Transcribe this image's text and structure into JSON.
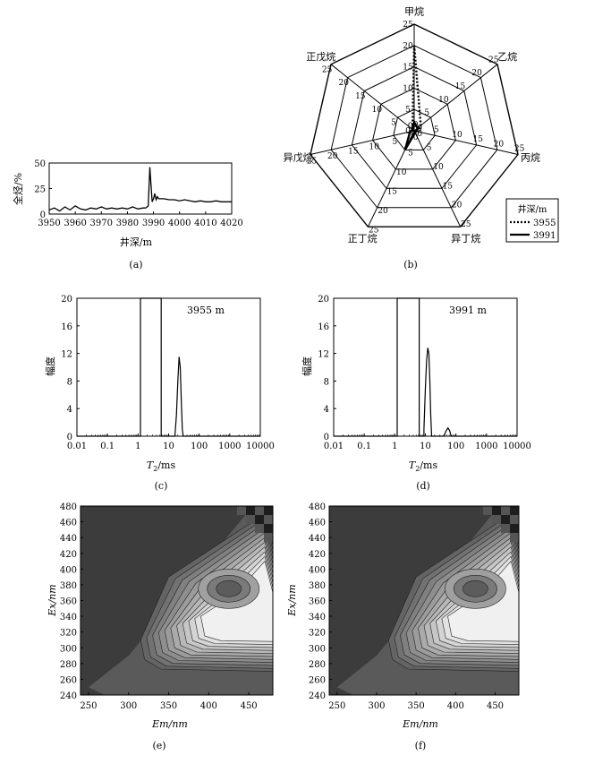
{
  "panels": {
    "a": {
      "caption": "(a)",
      "chart_data": {
        "type": "line",
        "xlabel": "井深/m",
        "ylabel": "全烃/%",
        "xlim": [
          3950,
          4020
        ],
        "ylim": [
          0,
          50
        ],
        "xticks": [
          3950,
          3960,
          3970,
          3980,
          3990,
          4000,
          4010,
          4020
        ],
        "yticks": [
          0,
          25,
          50
        ],
        "series": [
          {
            "x": [
              3950,
              3952,
              3954,
              3956,
              3958,
              3960,
              3962,
              3964,
              3966,
              3968,
              3970,
              3972,
              3974,
              3976,
              3978,
              3980,
              3982,
              3984,
              3986,
              3987,
              3988,
              3988.6,
              3989,
              3989.5,
              3990,
              3990.5,
              3991,
              3991.5,
              3992,
              3993,
              3994,
              3996,
              3998,
              4000,
              4002,
              4004,
              4006,
              4008,
              4010,
              4012,
              4014,
              4016,
              4018,
              4020
            ],
            "y": [
              4,
              6,
              3,
              7,
              4,
              8,
              5,
              4,
              6,
              5,
              7,
              5,
              6,
              5,
              6,
              5,
              7,
              5,
              6,
              6,
              8,
              46,
              30,
              12,
              15,
              20,
              14,
              17,
              15,
              15,
              15,
              14,
              14,
              13,
              14,
              13,
              12,
              13,
              12,
              12,
              13,
              12,
              12,
              12
            ]
          }
        ]
      }
    },
    "b": {
      "caption": "(b)",
      "chart_data": {
        "type": "radar",
        "axes": [
          "甲烷",
          "乙烷",
          "丙烷",
          "异丁烷",
          "正丁烷",
          "异戊烷",
          "正戊烷"
        ],
        "rlim": [
          0,
          25
        ],
        "rings": [
          5,
          10,
          15,
          20,
          25
        ],
        "ring_labels": [
          "0",
          "5",
          "10",
          "15",
          "20",
          "25"
        ],
        "legend_title": "井深/m",
        "series": [
          {
            "name": "3955",
            "style": "dotted",
            "values": [
              20,
              2,
              1,
              0.5,
              0.5,
              0.5,
              0.5
            ]
          },
          {
            "name": "3991",
            "style": "solid",
            "values": [
              2,
              1,
              0.5,
              0.5,
              5,
              1,
              0.5
            ]
          }
        ]
      }
    },
    "c": {
      "caption": "(c)",
      "label": "3955 m",
      "chart_data": {
        "type": "line",
        "xscale": "log",
        "xlabel_main": "T",
        "xlabel_sub": "2",
        "xlabel_unit": "/ms",
        "ylabel": "幅度",
        "xlim": [
          0.01,
          10000
        ],
        "ylim": [
          0,
          20
        ],
        "xticks": [
          "0.01",
          "0.1",
          "1",
          "10",
          "100",
          "1000",
          "10000"
        ],
        "yticks": [
          0,
          4,
          8,
          12,
          16,
          20
        ],
        "series": [
          {
            "x": [
              0.01,
              1.2,
              1.2,
              5.7,
              5.7,
              16,
              18,
              20,
              22,
              24,
              26,
              28,
              30,
              10000
            ],
            "y": [
              0,
              0,
              20,
              20,
              0,
              0,
              3,
              8,
              11.5,
              10,
              5,
              1,
              0,
              0
            ]
          }
        ]
      }
    },
    "d": {
      "caption": "(d)",
      "label": "3991 m",
      "chart_data": {
        "type": "line",
        "xscale": "log",
        "xlabel_main": "T",
        "xlabel_sub": "2",
        "xlabel_unit": "/ms",
        "ylabel": "幅度",
        "xlim": [
          0.01,
          10000
        ],
        "ylim": [
          0,
          20
        ],
        "xticks": [
          "0.01",
          "0.1",
          "1",
          "10",
          "100",
          "1000",
          "10000"
        ],
        "yticks": [
          0,
          4,
          8,
          12,
          16,
          20
        ],
        "series": [
          {
            "x": [
              0.01,
              1.2,
              1.2,
              6.3,
              6.3,
              9,
              9,
              10,
              11,
              12,
              13,
              14,
              15,
              16,
              40,
              48,
              55,
              62,
              70,
              10000
            ],
            "y": [
              0,
              0,
              20,
              20,
              0,
              0,
              1,
              7,
              11,
              12.8,
              12,
              8,
              3,
              0,
              0,
              0.8,
              1.2,
              0.8,
              0,
              0
            ]
          }
        ]
      }
    },
    "e": {
      "caption": "(e)",
      "chart_data": {
        "type": "heatmap",
        "xlabel": "Em/nm",
        "ylabel": "Ex/nm",
        "xlim": [
          240,
          480
        ],
        "ylim": [
          240,
          480
        ],
        "xticks": [
          250,
          300,
          350,
          400,
          450
        ],
        "yticks": [
          240,
          260,
          280,
          300,
          320,
          340,
          360,
          380,
          400,
          420,
          440,
          460,
          480
        ],
        "peak": {
          "em": 425,
          "ex": 375
        }
      }
    },
    "f": {
      "caption": "(f)",
      "chart_data": {
        "type": "heatmap",
        "xlabel": "Em/nm",
        "ylabel": "Ex/nm",
        "xlim": [
          240,
          480
        ],
        "ylim": [
          240,
          480
        ],
        "xticks": [
          250,
          300,
          350,
          400,
          450
        ],
        "yticks": [
          240,
          260,
          280,
          300,
          320,
          340,
          360,
          380,
          400,
          420,
          440,
          460,
          480
        ],
        "peak": {
          "em": 425,
          "ex": 375
        }
      }
    }
  },
  "colors": {
    "ink": "#000000",
    "heat_dark": "#3c3c3c",
    "heat_mid": "#8a8a8a",
    "heat_light": "#f0f0f0"
  }
}
